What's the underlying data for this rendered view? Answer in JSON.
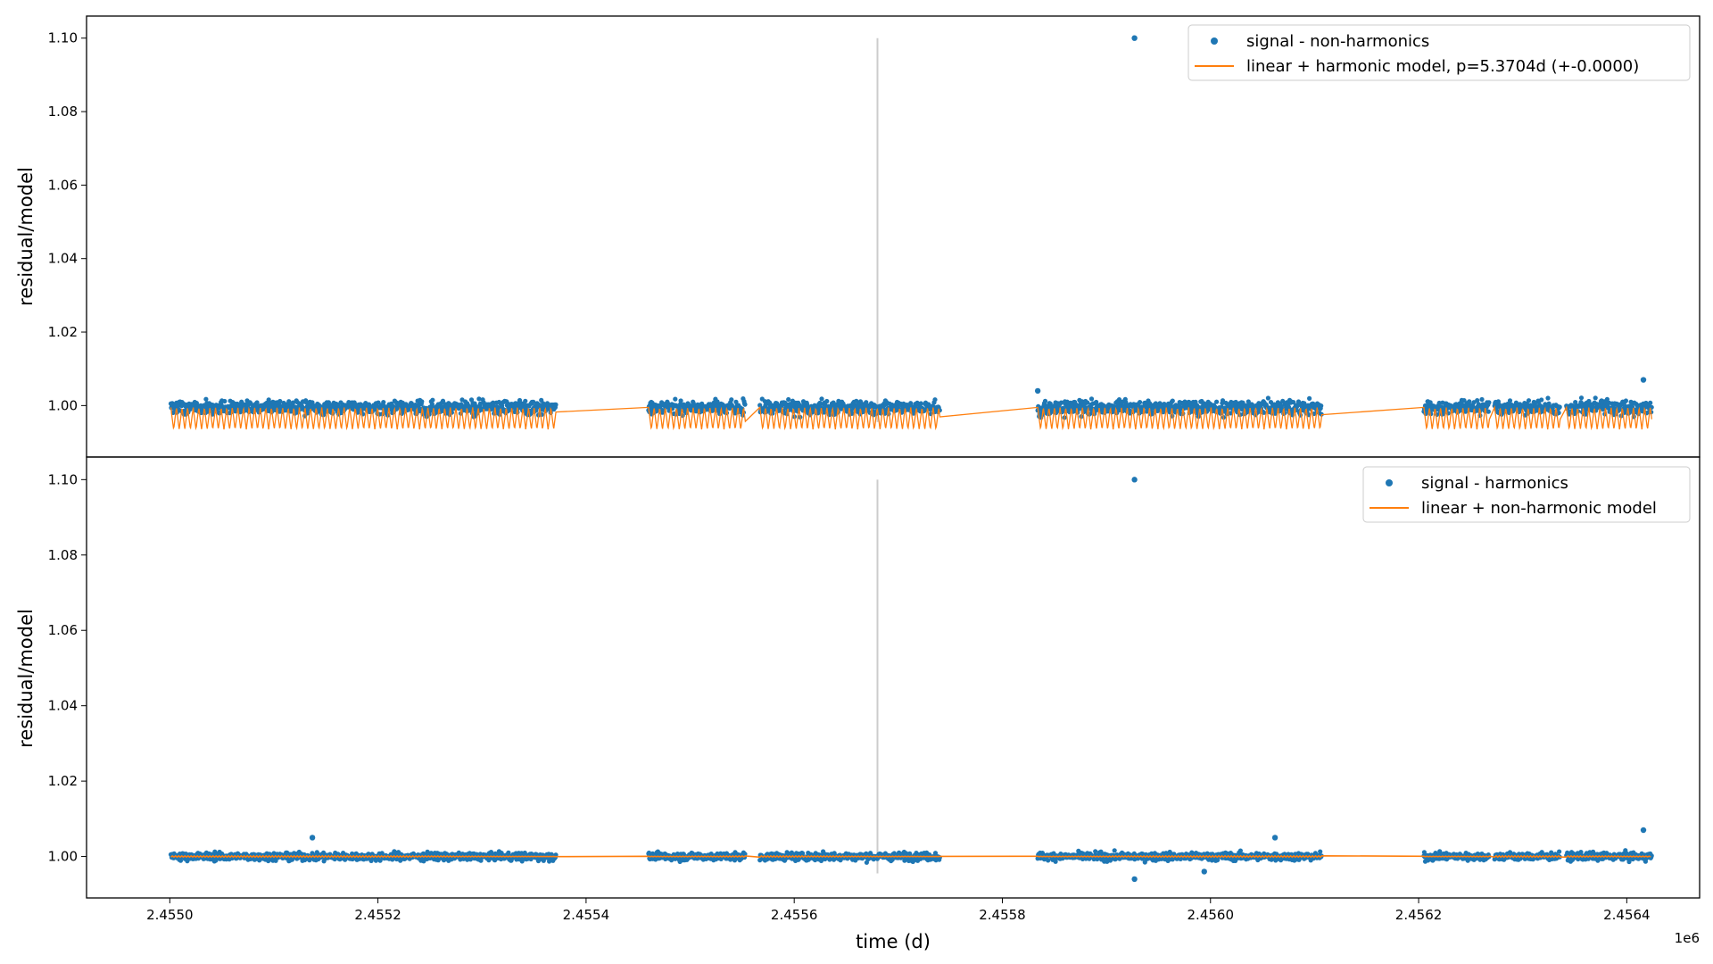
{
  "chart_data": [
    {
      "type": "scatter",
      "panel": "top",
      "xlabel": "",
      "ylabel": "residual/model",
      "xlim": [
        2454920,
        2456470
      ],
      "ylim": [
        0.986,
        1.106
      ],
      "yticks": [
        1.0,
        1.02,
        1.04,
        1.06,
        1.08,
        1.1
      ],
      "ytick_labels": [
        "1.00",
        "1.02",
        "1.04",
        "1.06",
        "1.08",
        "1.10"
      ],
      "data_segments": [
        [
          2455001,
          2455371
        ],
        [
          2455460,
          2455553
        ],
        [
          2455567,
          2455740
        ],
        [
          2455834,
          2456107
        ],
        [
          2456205,
          2456268
        ],
        [
          2456273,
          2456336
        ],
        [
          2456342,
          2456424
        ]
      ],
      "vline_x": 2455680,
      "series": [
        {
          "name": "signal - non-harmonics",
          "kind": "scatter",
          "color": "#1f77b4",
          "baseline": 1.0,
          "scatter_sd": 0.0022,
          "outliers": [
            {
              "x": 2455927,
              "y": 1.1
            },
            {
              "x": 2456416,
              "y": 1.007
            },
            {
              "x": 2455834,
              "y": 1.004
            }
          ]
        },
        {
          "name": "linear + harmonic model, p=5.3704d (+-0.0000)",
          "kind": "line",
          "color": "#ff7f0e",
          "period_days": 5.3704,
          "dip_depth": 0.006
        }
      ],
      "legend": {
        "location": "upper right"
      }
    },
    {
      "type": "scatter",
      "panel": "bottom",
      "xlabel": "time (d)",
      "ylabel": "residual/model",
      "xlim": [
        2454920,
        2456470
      ],
      "ylim": [
        0.989,
        1.106
      ],
      "yticks": [
        1.0,
        1.02,
        1.04,
        1.06,
        1.08,
        1.1
      ],
      "ytick_labels": [
        "1.00",
        "1.02",
        "1.04",
        "1.06",
        "1.08",
        "1.10"
      ],
      "xticks": [
        2455000,
        2455200,
        2455400,
        2455600,
        2455800,
        2456000,
        2456200,
        2456400
      ],
      "xtick_labels": [
        "2.4550",
        "2.4552",
        "2.4554",
        "2.4556",
        "2.4558",
        "2.4560",
        "2.4562",
        "2.4564"
      ],
      "x_offset_label": "1e6",
      "data_segments": [
        [
          2455001,
          2455371
        ],
        [
          2455460,
          2455553
        ],
        [
          2455567,
          2455740
        ],
        [
          2455834,
          2456107
        ],
        [
          2456205,
          2456268
        ],
        [
          2456273,
          2456336
        ],
        [
          2456342,
          2456424
        ]
      ],
      "vline_x": 2455680,
      "series": [
        {
          "name": "signal - harmonics",
          "kind": "scatter",
          "color": "#1f77b4",
          "baseline": 1.0,
          "scatter_sd": 0.0013,
          "outliers": [
            {
              "x": 2455927,
              "y": 1.1
            },
            {
              "x": 2455137,
              "y": 1.005
            },
            {
              "x": 2456062,
              "y": 1.005
            },
            {
              "x": 2456416,
              "y": 1.007
            },
            {
              "x": 2455927,
              "y": 0.994
            },
            {
              "x": 2455994,
              "y": 0.996
            }
          ]
        },
        {
          "name": "linear + non-harmonic model",
          "kind": "line",
          "color": "#ff7f0e",
          "wiggle": 0.0006
        }
      ],
      "legend": {
        "location": "upper right"
      }
    }
  ]
}
